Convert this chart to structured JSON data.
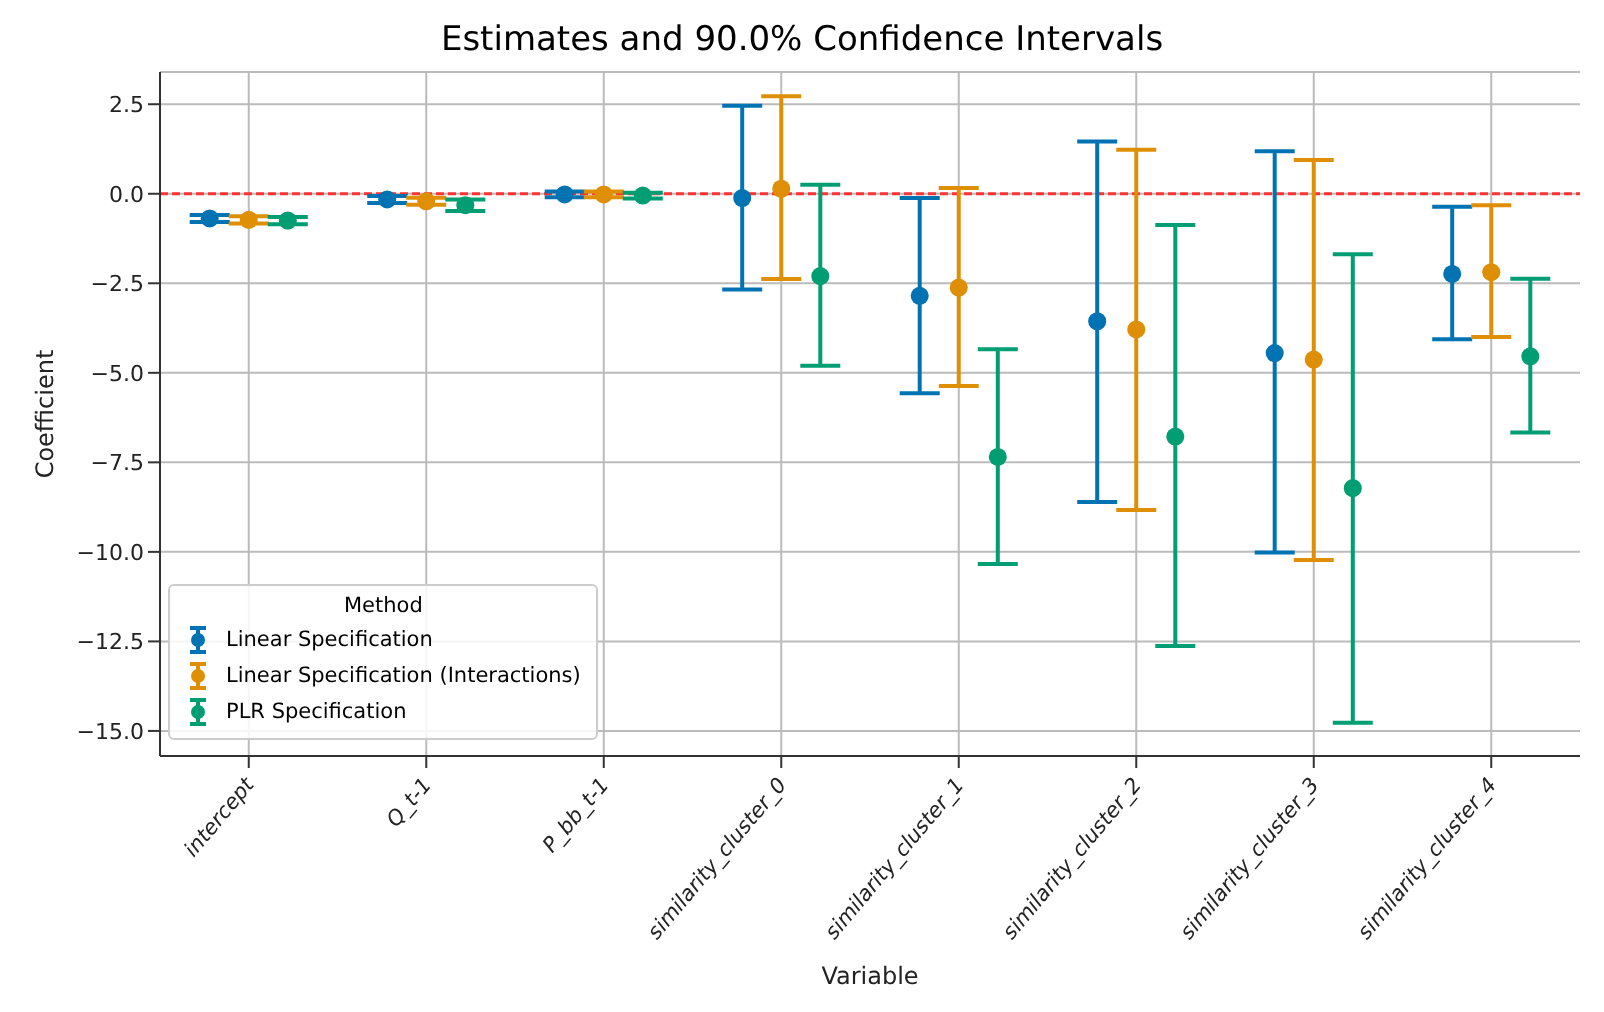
{
  "chart_data": {
    "type": "scatter",
    "title": "Estimates and 90.0% Confidence Intervals",
    "xlabel": "Variable",
    "ylabel": "Coefficient",
    "legend_title": "Method",
    "categories": [
      "intercept",
      "Q_t-1",
      "P_bb_t-1",
      "similarity_cluster_0",
      "similarity_cluster_1",
      "similarity_cluster_2",
      "similarity_cluster_3",
      "similarity_cluster_4"
    ],
    "series": [
      {
        "name": "Linear Specification",
        "color": "#0173b2",
        "values": [
          -0.69,
          -0.16,
          -0.02,
          -0.12,
          -2.85,
          -3.56,
          -4.45,
          -2.24
        ],
        "errors": [
          [
            -0.79,
            -0.59
          ],
          [
            -0.26,
            -0.06
          ],
          [
            -0.1,
            0.06
          ],
          [
            -2.67,
            2.46
          ],
          [
            -5.57,
            -0.12
          ],
          [
            -8.61,
            1.46
          ],
          [
            -10.02,
            1.19
          ],
          [
            -4.06,
            -0.36
          ]
        ]
      },
      {
        "name": "Linear Specification (Interactions)",
        "color": "#de8f05",
        "values": [
          -0.73,
          -0.21,
          -0.02,
          0.14,
          -2.62,
          -3.79,
          -4.63,
          -2.19
        ],
        "errors": [
          [
            -0.83,
            -0.63
          ],
          [
            -0.31,
            -0.11
          ],
          [
            -0.1,
            0.06
          ],
          [
            -2.38,
            2.72
          ],
          [
            -5.37,
            0.16
          ],
          [
            -8.83,
            1.23
          ],
          [
            -10.23,
            0.94
          ],
          [
            -4.0,
            -0.32
          ]
        ]
      },
      {
        "name": "PLR Specification",
        "color": "#029e73",
        "values": [
          -0.75,
          -0.32,
          -0.05,
          -2.3,
          -7.35,
          -6.78,
          -8.22,
          -4.54
        ],
        "errors": [
          [
            -0.85,
            -0.65
          ],
          [
            -0.48,
            -0.16
          ],
          [
            -0.13,
            0.03
          ],
          [
            -4.8,
            0.25
          ],
          [
            -10.34,
            -4.34
          ],
          [
            -12.63,
            -0.87
          ],
          [
            -14.77,
            -1.69
          ],
          [
            -6.67,
            -2.37
          ]
        ]
      }
    ],
    "ylim": [
      -15.7,
      3.4
    ],
    "yticks": [
      {
        "value": -15,
        "label": "−15.0"
      },
      {
        "value": -12.5,
        "label": "−12.5"
      },
      {
        "value": -10,
        "label": "−10.0"
      },
      {
        "value": -7.5,
        "label": "−7.5"
      },
      {
        "value": -5,
        "label": "−5.0"
      },
      {
        "value": -2.5,
        "label": "−2.5"
      },
      {
        "value": 0,
        "label": "0.0"
      },
      {
        "value": 2.5,
        "label": "2.5"
      }
    ],
    "ref_lines": [
      {
        "axis": "y",
        "value": 0,
        "color": "#ff3333",
        "line_style": "dashed"
      }
    ],
    "grid": true,
    "legend": "bottom left",
    "marker": "circle"
  }
}
